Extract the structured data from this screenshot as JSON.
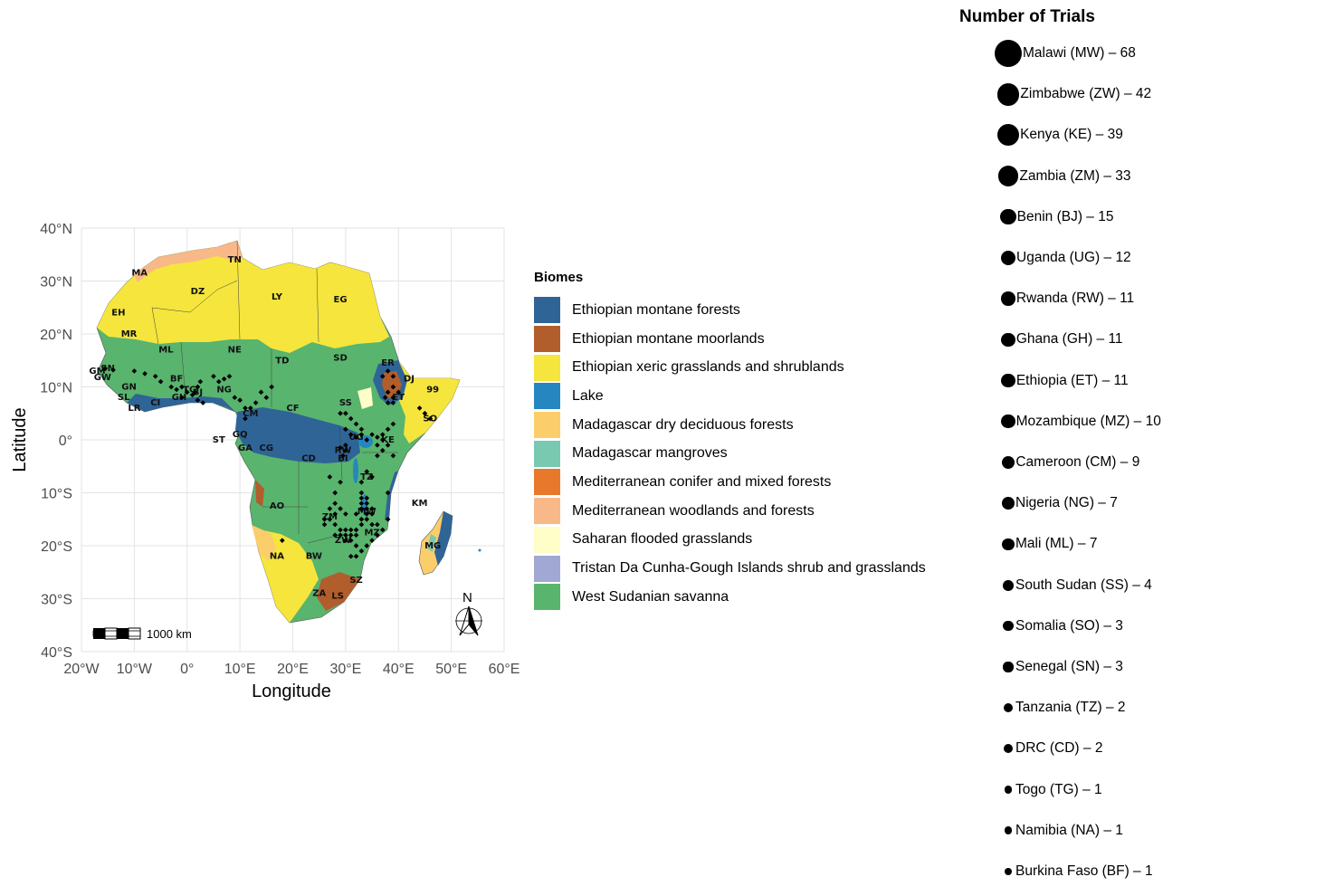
{
  "map": {
    "x_label": "Longitude",
    "y_label": "Latitude",
    "x_ticks": [
      "20°W",
      "10°W",
      "0°",
      "10°E",
      "20°E",
      "30°E",
      "40°E",
      "50°E",
      "60°E"
    ],
    "y_ticks": [
      "40°N",
      "30°N",
      "20°N",
      "10°N",
      "0°",
      "10°S",
      "20°S",
      "30°S",
      "40°S"
    ],
    "xlim": [
      -20,
      60
    ],
    "ylim": [
      -40,
      40
    ],
    "scale_bar_label": "1000 km",
    "north_arrow_label": "N",
    "country_codes": [
      "TN",
      "MA",
      "DZ",
      "LY",
      "EG",
      "EH",
      "MR",
      "ML",
      "NE",
      "TD",
      "SD",
      "ER",
      "DJ",
      "SN",
      "GM",
      "GW",
      "GN",
      "SL",
      "LR",
      "CI",
      "BF",
      "GH",
      "TG",
      "BJ",
      "NG",
      "CM",
      "CF",
      "SS",
      "ET",
      "99",
      "SO",
      "UG",
      "KE",
      "RW",
      "BI",
      "CD",
      "CG",
      "GA",
      "GQ",
      "ST",
      "TZ",
      "AO",
      "ZM",
      "MW",
      "MZ",
      "ZW",
      "NA",
      "BW",
      "ZA",
      "LS",
      "SZ",
      "MG",
      "KM"
    ]
  },
  "biome_legend": {
    "title": "Biomes",
    "items": [
      {
        "label": "Ethiopian montane forests",
        "color": "#2f6497"
      },
      {
        "label": "Ethiopian montane moorlands",
        "color": "#b25d2c"
      },
      {
        "label": "Ethiopian xeric grasslands and shrublands",
        "color": "#f5e53d"
      },
      {
        "label": "Lake",
        "color": "#2686bf"
      },
      {
        "label": "Madagascar dry deciduous forests",
        "color": "#fbcd6b"
      },
      {
        "label": "Madagascar mangroves",
        "color": "#79c9b1"
      },
      {
        "label": "Mediterranean conifer and mixed forests",
        "color": "#e8792c"
      },
      {
        "label": "Mediterranean woodlands and forests",
        "color": "#f8b888"
      },
      {
        "label": "Saharan flooded grasslands",
        "color": "#fffdc8"
      },
      {
        "label": "Tristan Da Cunha-Gough Islands shrub and grasslands",
        "color": "#a0a8d3"
      },
      {
        "label": "West Sudanian savanna",
        "color": "#59b46e"
      }
    ]
  },
  "trials_legend": {
    "title": "Number of Trials",
    "items": [
      {
        "label": "Malawi (MW) – 68",
        "trials": 68
      },
      {
        "label": "Zimbabwe (ZW) – 42",
        "trials": 42
      },
      {
        "label": "Kenya (KE) – 39",
        "trials": 39
      },
      {
        "label": "Zambia (ZM) – 33",
        "trials": 33
      },
      {
        "label": "Benin (BJ) – 15",
        "trials": 15
      },
      {
        "label": "Uganda (UG) – 12",
        "trials": 12
      },
      {
        "label": "Rwanda (RW) – 11",
        "trials": 11
      },
      {
        "label": "Ghana (GH) – 11",
        "trials": 11
      },
      {
        "label": "Ethiopia (ET) – 11",
        "trials": 11
      },
      {
        "label": "Mozambique (MZ) – 10",
        "trials": 10
      },
      {
        "label": "Cameroon (CM) – 9",
        "trials": 9
      },
      {
        "label": "Nigeria (NG) – 7",
        "trials": 7
      },
      {
        "label": "Mali (ML) – 7",
        "trials": 7
      },
      {
        "label": "South Sudan (SS) – 4",
        "trials": 4
      },
      {
        "label": "Somalia (SO) – 3",
        "trials": 3
      },
      {
        "label": "Senegal (SN) – 3",
        "trials": 3
      },
      {
        "label": "Tanzania (TZ) – 2",
        "trials": 2
      },
      {
        "label": "DRC (CD) – 2",
        "trials": 2
      },
      {
        "label": "Togo (TG) – 1",
        "trials": 1
      },
      {
        "label": "Namibia (NA) – 1",
        "trials": 1
      },
      {
        "label": "Burkina Faso (BF) – 1",
        "trials": 1
      }
    ]
  },
  "trial_sites": [
    [
      -15.5,
      13.5
    ],
    [
      -14,
      13.2
    ],
    [
      -10,
      13
    ],
    [
      -8,
      12.5
    ],
    [
      -6,
      12
    ],
    [
      -5,
      11
    ],
    [
      -3,
      10
    ],
    [
      -2,
      9.5
    ],
    [
      -1,
      10
    ],
    [
      -1,
      8
    ],
    [
      0,
      9
    ],
    [
      1,
      8.5
    ],
    [
      1.5,
      9
    ],
    [
      2,
      10
    ],
    [
      2.5,
      11
    ],
    [
      3,
      7
    ],
    [
      2,
      7.5
    ],
    [
      5,
      12
    ],
    [
      6,
      11
    ],
    [
      7,
      11.5
    ],
    [
      8,
      12
    ],
    [
      9,
      8
    ],
    [
      10,
      7.5
    ],
    [
      11,
      6
    ],
    [
      11,
      4
    ],
    [
      12,
      6
    ],
    [
      13,
      7
    ],
    [
      14,
      9
    ],
    [
      15,
      8
    ],
    [
      16,
      10
    ],
    [
      29,
      5
    ],
    [
      30,
      5
    ],
    [
      31,
      4
    ],
    [
      32,
      3
    ],
    [
      33,
      2
    ],
    [
      30,
      2
    ],
    [
      31,
      1
    ],
    [
      32,
      0.5
    ],
    [
      33,
      1
    ],
    [
      34,
      0
    ],
    [
      35,
      1
    ],
    [
      36,
      0.5
    ],
    [
      37,
      1
    ],
    [
      38,
      2
    ],
    [
      39,
      3
    ],
    [
      37,
      0
    ],
    [
      36,
      -1
    ],
    [
      37,
      -2
    ],
    [
      38,
      -1
    ],
    [
      39,
      -3
    ],
    [
      36,
      -3
    ],
    [
      29,
      -1.5
    ],
    [
      30,
      -2
    ],
    [
      29.5,
      -3
    ],
    [
      30,
      -1
    ],
    [
      38,
      7
    ],
    [
      39,
      8
    ],
    [
      38,
      9
    ],
    [
      39,
      10
    ],
    [
      40,
      9
    ],
    [
      39,
      12
    ],
    [
      37,
      12
    ],
    [
      38,
      13
    ],
    [
      37.5,
      8
    ],
    [
      39,
      7
    ],
    [
      45,
      5
    ],
    [
      44,
      6
    ],
    [
      46,
      4
    ],
    [
      33,
      -10
    ],
    [
      33,
      -11
    ],
    [
      34,
      -12
    ],
    [
      33,
      -13
    ],
    [
      34,
      -13
    ],
    [
      35,
      -14
    ],
    [
      34,
      -15
    ],
    [
      35,
      -16
    ],
    [
      33,
      -15
    ],
    [
      32,
      -14
    ],
    [
      33,
      -12
    ],
    [
      34,
      -11
    ],
    [
      35,
      -13
    ],
    [
      34,
      -14
    ],
    [
      33,
      -16
    ],
    [
      32,
      -17
    ],
    [
      31,
      -17
    ],
    [
      30,
      -18
    ],
    [
      31,
      -18
    ],
    [
      32,
      -18
    ],
    [
      30,
      -17
    ],
    [
      31,
      -19
    ],
    [
      32,
      -20
    ],
    [
      30,
      -19
    ],
    [
      29,
      -18
    ],
    [
      28,
      -18
    ],
    [
      29,
      -17
    ],
    [
      28,
      -14
    ],
    [
      27,
      -15
    ],
    [
      28,
      -16
    ],
    [
      26,
      -15
    ],
    [
      27,
      -13
    ],
    [
      28,
      -12
    ],
    [
      29,
      -13
    ],
    [
      30,
      -14
    ],
    [
      26,
      -16
    ],
    [
      36,
      -16
    ],
    [
      37,
      -17
    ],
    [
      36,
      -18
    ],
    [
      38,
      -15
    ],
    [
      35,
      -19
    ],
    [
      34,
      -20
    ],
    [
      33,
      -21
    ],
    [
      32,
      -22
    ],
    [
      31,
      -22
    ],
    [
      18,
      -19
    ],
    [
      34,
      -6
    ],
    [
      35,
      -7
    ],
    [
      33,
      -8
    ],
    [
      38,
      -10
    ],
    [
      27,
      -7
    ],
    [
      28,
      -10
    ],
    [
      29,
      -8
    ]
  ]
}
